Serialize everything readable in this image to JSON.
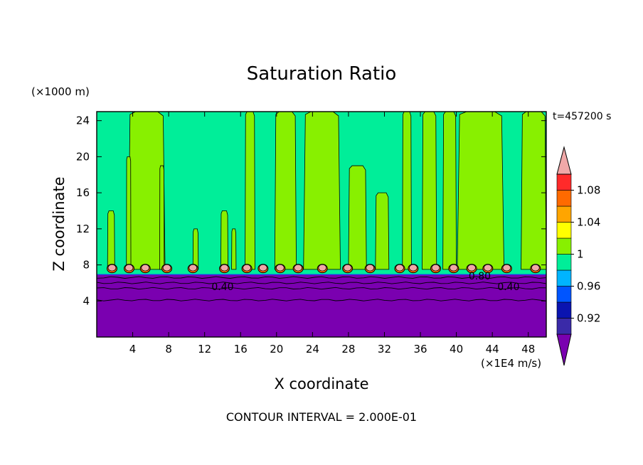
{
  "chart_data": {
    "type": "contour",
    "title": "Saturation Ratio",
    "xlabel": "X coordinate",
    "ylabel": "Z coordinate",
    "x_unit": "(×1E4 m/s)",
    "y_unit": "(×1000 m)",
    "time_label": "t=457200 s",
    "footer": "CONTOUR INTERVAL = 2.000E-01",
    "xlim": [
      0,
      50
    ],
    "ylim": [
      0,
      25
    ],
    "x_ticks": [
      4,
      8,
      12,
      16,
      20,
      24,
      28,
      32,
      36,
      40,
      44,
      48
    ],
    "y_ticks": [
      4,
      8,
      12,
      16,
      20,
      24
    ],
    "colorbar": {
      "levels": [
        0.92,
        0.96,
        1,
        1.04,
        1.08
      ],
      "labels": [
        "0.92",
        "0.96",
        "1",
        "1.04",
        "1.08"
      ],
      "colors": [
        "#7a00b0",
        "#3a2aa8",
        "#0a14b0",
        "#0055ff",
        "#00b4ff",
        "#00ee99",
        "#88f000",
        "#ffff00",
        "#ffa500",
        "#ff6a00",
        "#ff2a2a",
        "#f0a8a8"
      ]
    },
    "contour_labels": [
      {
        "text": "0.40",
        "x": 14.0,
        "y": 5.6
      },
      {
        "text": "0.40",
        "x": 45.8,
        "y": 5.6
      },
      {
        "text": "0.80",
        "x": 42.6,
        "y": 6.8
      }
    ],
    "layers": {
      "low_value_top": 6.9,
      "background_fill_color": "#00ee99",
      "lower_boundary_color": "#7a00b0"
    },
    "columns": [
      {
        "x0": 3.5,
        "x1": 7.6,
        "top": 25
      },
      {
        "x0": 16.5,
        "x1": 17.6,
        "top": 25
      },
      {
        "x0": 19.8,
        "x1": 22.2,
        "top": 25
      },
      {
        "x0": 23.0,
        "x1": 27.1,
        "top": 25
      },
      {
        "x0": 28.0,
        "x1": 30.0,
        "top": 19
      },
      {
        "x0": 31.0,
        "x1": 32.5,
        "top": 16
      },
      {
        "x0": 34.0,
        "x1": 35.0,
        "top": 25
      },
      {
        "x0": 36.2,
        "x1": 37.8,
        "top": 25
      },
      {
        "x0": 38.5,
        "x1": 40.0,
        "top": 25
      },
      {
        "x0": 40.1,
        "x1": 45.3,
        "top": 25
      },
      {
        "x0": 47.2,
        "x1": 50.0,
        "top": 25
      },
      {
        "x0": 1.2,
        "x1": 2.0,
        "top": 14
      },
      {
        "x0": 3.3,
        "x1": 3.8,
        "top": 20
      },
      {
        "x0": 7.0,
        "x1": 7.5,
        "top": 19
      },
      {
        "x0": 10.7,
        "x1": 11.3,
        "top": 12
      },
      {
        "x0": 13.8,
        "x1": 14.6,
        "top": 14
      },
      {
        "x0": 15.0,
        "x1": 15.5,
        "top": 12
      }
    ],
    "cloud_blobs": [
      1.7,
      3.6,
      5.4,
      7.8,
      10.7,
      14.2,
      16.7,
      18.5,
      20.4,
      22.4,
      25.1,
      27.9,
      30.4,
      33.7,
      35.2,
      37.7,
      39.7,
      41.7,
      43.5,
      45.6,
      48.8
    ]
  }
}
